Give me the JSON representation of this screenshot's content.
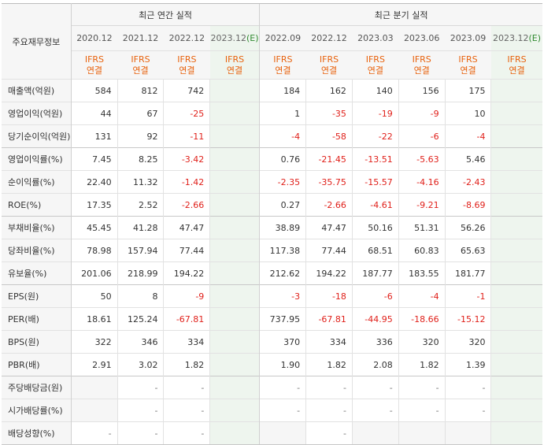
{
  "caption": "주요재무정보",
  "groups": {
    "annual": "최근 연간 실적",
    "quarter": "최근 분기 실적"
  },
  "periods": {
    "a1": "2020.12",
    "a2": "2021.12",
    "a3": "2022.12",
    "a4": "2023.12",
    "q1": "2022.09",
    "q2": "2022.12",
    "q3": "2023.03",
    "q4": "2023.06",
    "q5": "2023.09",
    "q6": "2023.12",
    "est_mark": "(E)"
  },
  "basis": {
    "line1": "IFRS",
    "line2": "연결"
  },
  "rows": [
    {
      "label": "매출액(억원)",
      "a": [
        "584",
        "812",
        "742",
        ""
      ],
      "q": [
        "184",
        "162",
        "140",
        "156",
        "175",
        ""
      ]
    },
    {
      "label": "영업이익(억원)",
      "a": [
        "44",
        "67",
        "-25",
        ""
      ],
      "q": [
        "1",
        "-35",
        "-19",
        "-9",
        "10",
        ""
      ]
    },
    {
      "label": "당기순이익(억원)",
      "a": [
        "131",
        "92",
        "-11",
        ""
      ],
      "q": [
        "-4",
        "-58",
        "-22",
        "-6",
        "-4",
        ""
      ]
    },
    {
      "label": "영업이익률(%)",
      "a": [
        "7.45",
        "8.25",
        "-3.42",
        ""
      ],
      "q": [
        "0.76",
        "-21.45",
        "-13.51",
        "-5.63",
        "5.46",
        ""
      ]
    },
    {
      "label": "순이익률(%)",
      "a": [
        "22.40",
        "11.32",
        "-1.42",
        ""
      ],
      "q": [
        "-2.35",
        "-35.75",
        "-15.57",
        "-4.16",
        "-2.43",
        ""
      ]
    },
    {
      "label": "ROE(%)",
      "a": [
        "17.35",
        "2.52",
        "-2.66",
        ""
      ],
      "q": [
        "0.27",
        "-2.66",
        "-4.61",
        "-9.21",
        "-8.69",
        ""
      ]
    },
    {
      "label": "부채비율(%)",
      "a": [
        "45.45",
        "41.28",
        "47.47",
        ""
      ],
      "q": [
        "38.89",
        "47.47",
        "50.16",
        "51.31",
        "56.26",
        ""
      ]
    },
    {
      "label": "당좌비율(%)",
      "a": [
        "78.98",
        "157.94",
        "77.44",
        ""
      ],
      "q": [
        "117.38",
        "77.44",
        "68.51",
        "60.83",
        "65.63",
        ""
      ]
    },
    {
      "label": "유보율(%)",
      "a": [
        "201.06",
        "218.99",
        "194.22",
        ""
      ],
      "q": [
        "212.62",
        "194.22",
        "187.77",
        "183.55",
        "181.77",
        ""
      ]
    },
    {
      "label": "EPS(원)",
      "a": [
        "50",
        "8",
        "-9",
        ""
      ],
      "q": [
        "-3",
        "-18",
        "-6",
        "-4",
        "-1",
        ""
      ]
    },
    {
      "label": "PER(배)",
      "a": [
        "18.61",
        "125.24",
        "-67.81",
        ""
      ],
      "q": [
        "737.95",
        "-67.81",
        "-44.95",
        "-18.66",
        "-15.12",
        ""
      ]
    },
    {
      "label": "BPS(원)",
      "a": [
        "322",
        "346",
        "334",
        ""
      ],
      "q": [
        "370",
        "334",
        "336",
        "320",
        "320",
        ""
      ]
    },
    {
      "label": "PBR(배)",
      "a": [
        "2.91",
        "3.02",
        "1.82",
        ""
      ],
      "q": [
        "1.90",
        "1.82",
        "2.08",
        "1.82",
        "1.39",
        ""
      ]
    },
    {
      "label": "주당배당금(원)",
      "a": [
        "",
        "-",
        "-",
        ""
      ],
      "q": [
        "-",
        "-",
        "-",
        "-",
        "-",
        ""
      ]
    },
    {
      "label": "시가배당률(%)",
      "a": [
        "",
        "-",
        "-",
        ""
      ],
      "q": [
        "-",
        "-",
        "-",
        "-",
        "-",
        ""
      ]
    },
    {
      "label": "배당성향(%)",
      "a": [
        "-",
        "-",
        "-",
        ""
      ],
      "q": [
        "",
        "-",
        "",
        "",
        "",
        ""
      ]
    }
  ],
  "colors": {
    "negative": "#e0201a",
    "basis": "#e8620d",
    "estimate_bg": "#eef5ee",
    "estimate_tag": "#2f8a2f"
  }
}
